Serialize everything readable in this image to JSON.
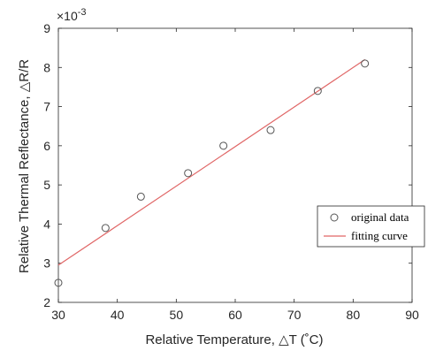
{
  "chart_data": {
    "type": "scatter",
    "xlabel": "Relative Temperature, △T (˚C)",
    "ylabel": "Relative Thermal Reflectance, △R/R",
    "y_multiplier_label": "×10",
    "y_multiplier_exponent": "-3",
    "xlim": [
      30,
      90
    ],
    "ylim": [
      2,
      9
    ],
    "xticks": [
      "30",
      "40",
      "50",
      "60",
      "70",
      "80",
      "90"
    ],
    "yticks": [
      "2",
      "3",
      "4",
      "5",
      "6",
      "7",
      "8",
      "9"
    ],
    "grid": false,
    "legend_position": "bottom-right",
    "series": [
      {
        "name": "original data",
        "kind": "scatter",
        "color": "#555555",
        "x": [
          30,
          38,
          44,
          52,
          58,
          66,
          74,
          82
        ],
        "y": [
          2.5,
          3.9,
          4.7,
          5.3,
          6.0,
          6.4,
          7.4,
          8.1
        ]
      },
      {
        "name": "fitting curve",
        "kind": "line",
        "color": "#e06666",
        "x": [
          30,
          82
        ],
        "y": [
          2.95,
          8.2
        ]
      }
    ]
  }
}
